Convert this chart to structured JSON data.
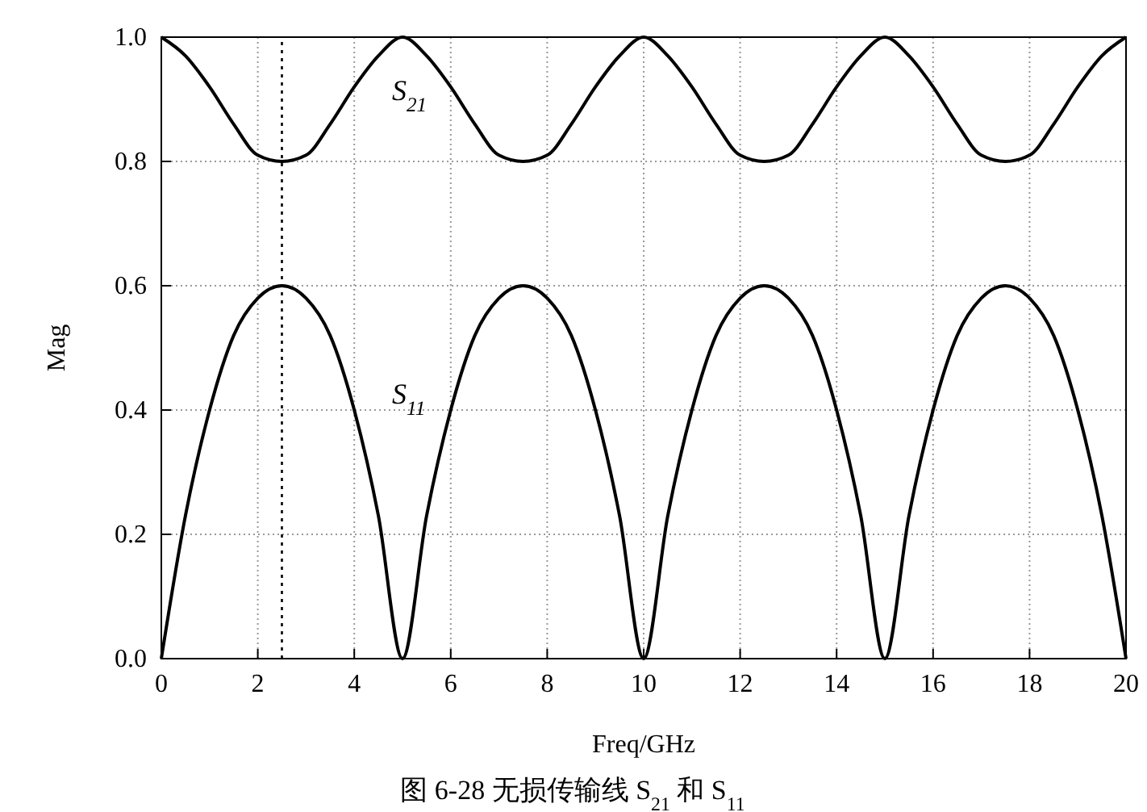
{
  "chart_data": {
    "type": "line",
    "xlabel": "Freq/GHz",
    "ylabel": "Mag",
    "x": [
      0,
      0.5,
      1,
      1.5,
      2,
      2.5,
      3,
      3.5,
      4,
      4.5,
      5,
      5.5,
      6,
      6.5,
      7,
      7.5,
      8,
      8.5,
      9,
      9.5,
      10,
      10.5,
      11,
      11.5,
      12,
      12.5,
      13,
      13.5,
      14,
      14.5,
      15,
      15.5,
      16,
      16.5,
      17,
      17.5,
      18,
      18.5,
      19,
      19.5,
      20
    ],
    "series": [
      {
        "color": "#000000",
        "values": [
          1,
          0.97,
          0.92,
          0.86,
          0.81,
          0.8,
          0.81,
          0.86,
          0.92,
          0.97,
          1,
          0.97,
          0.92,
          0.86,
          0.81,
          0.8,
          0.81,
          0.86,
          0.92,
          0.97,
          1,
          0.97,
          0.92,
          0.86,
          0.81,
          0.8,
          0.81,
          0.86,
          0.92,
          0.97,
          1,
          0.97,
          0.92,
          0.86,
          0.81,
          0.8,
          0.81,
          0.86,
          0.92,
          0.97,
          1
        ]
      },
      {
        "color": "#000000",
        "values": [
          0,
          0.23,
          0.4,
          0.52,
          0.58,
          0.6,
          0.58,
          0.52,
          0.4,
          0.23,
          0,
          0.23,
          0.4,
          0.52,
          0.58,
          0.6,
          0.58,
          0.52,
          0.4,
          0.23,
          0,
          0.23,
          0.4,
          0.52,
          0.58,
          0.6,
          0.58,
          0.52,
          0.4,
          0.23,
          0,
          0.23,
          0.4,
          0.52,
          0.58,
          0.6,
          0.58,
          0.52,
          0.4,
          0.23,
          0
        ]
      }
    ],
    "xlim": [
      0,
      20
    ],
    "xticks": [
      0,
      2,
      4,
      6,
      8,
      10,
      12,
      14,
      16,
      18,
      20
    ],
    "ylim": [
      0,
      1
    ],
    "yticks": [
      {
        "value": 0,
        "label": "0.0"
      },
      {
        "value": 0.2,
        "label": "0.2"
      },
      {
        "value": 0.4,
        "label": "0.4"
      },
      {
        "value": 0.6,
        "label": "0.6"
      },
      {
        "value": 0.8,
        "label": "0.8"
      },
      {
        "value": 1,
        "label": "1.0"
      }
    ],
    "grid": true,
    "marker": "none",
    "line_style": "solid",
    "ref_lines": [
      {
        "axis": "x",
        "value": 2.5,
        "color": "#000000",
        "line_style": "dotted"
      }
    ],
    "annotations": [
      "S$_{21}$",
      "S$_{11}$",
      "图 6-28  无损传输线 S$_{21}$ 和 S$_{11}$"
    ]
  }
}
